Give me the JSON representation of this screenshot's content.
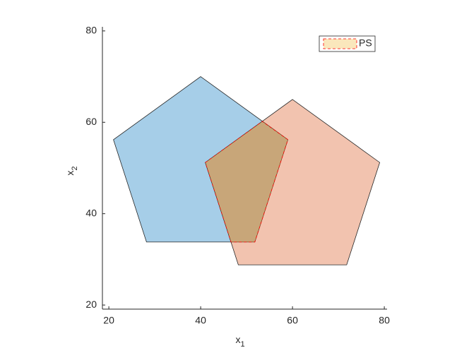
{
  "chart_data": {
    "type": "polygon",
    "xlabel": [
      "x",
      "1"
    ],
    "ylabel": [
      "x",
      "2"
    ],
    "xlim": [
      18.6,
      80.6
    ],
    "ylim": [
      19.1,
      80.9
    ],
    "xticks": [
      20,
      40,
      60,
      80
    ],
    "yticks": [
      20,
      40,
      60,
      80
    ],
    "legend": "upper right",
    "series": [
      {
        "color": "#0072bd",
        "alpha": 0.35,
        "edge": "#262626",
        "x": [
          40,
          59.0,
          51.8,
          28.2,
          21.0
        ],
        "y": [
          70,
          56.2,
          33.8,
          33.8,
          56.2
        ]
      },
      {
        "color": "#d95319",
        "alpha": 0.35,
        "edge": "#262626",
        "x": [
          60,
          79.0,
          71.8,
          48.2,
          41.0
        ],
        "y": [
          65,
          51.2,
          28.8,
          28.8,
          51.2
        ]
      },
      {
        "name": "PS",
        "color": "#edb120",
        "alpha": 0.3,
        "edge": "#ff0000",
        "dashed": true,
        "x": [
          41.0,
          53.4,
          59.0,
          51.8,
          46.6
        ],
        "y": [
          51.2,
          60.2,
          56.2,
          33.8,
          33.8
        ]
      }
    ]
  }
}
